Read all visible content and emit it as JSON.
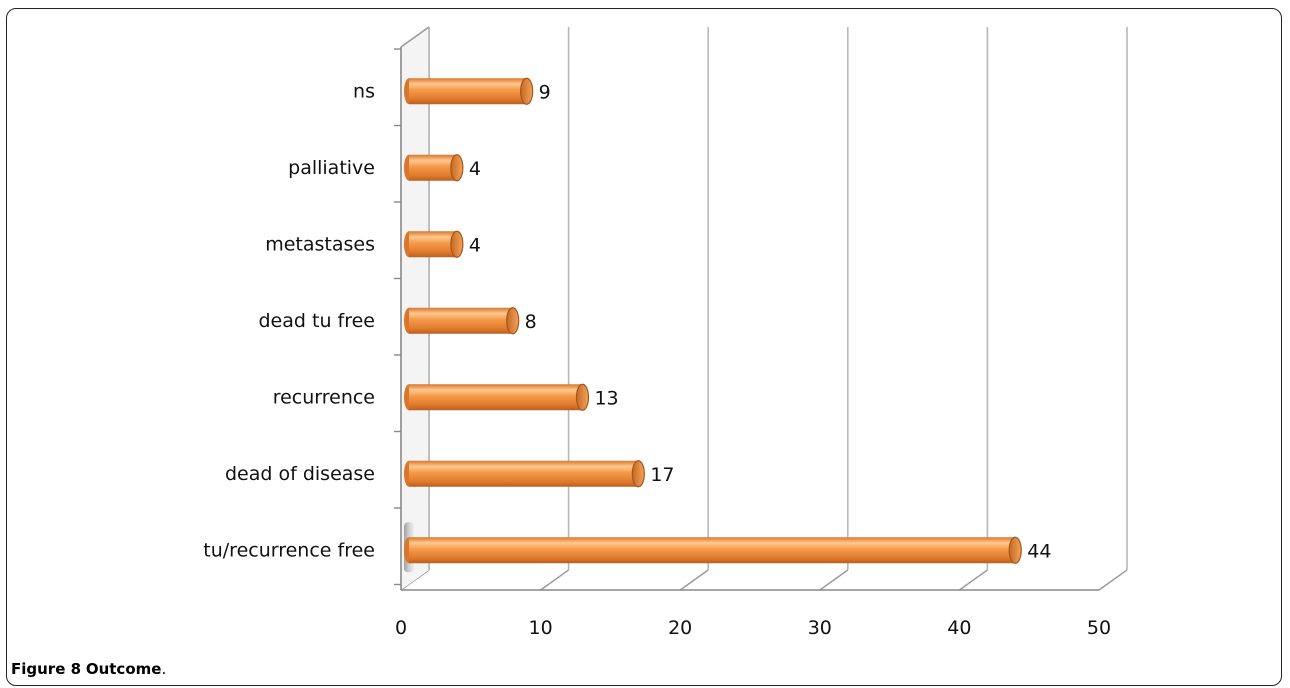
{
  "caption": {
    "figure_number": "Figure 8",
    "title": "Outcome",
    "trailing": "."
  },
  "chart_data": {
    "type": "bar",
    "orientation": "horizontal",
    "style": "3d-cylinder",
    "categories": [
      "ns",
      "palliative",
      "metastases",
      "dead tu free",
      "recurrence",
      "dead of disease",
      "tu/recurrence free"
    ],
    "values": [
      9,
      4,
      4,
      8,
      13,
      17,
      44
    ],
    "data_labels": [
      "9",
      "4",
      "4",
      "8",
      "13",
      "17",
      "44"
    ],
    "x_ticks": [
      "0",
      "10",
      "20",
      "30",
      "40",
      "50"
    ],
    "xlim": [
      0,
      50
    ],
    "title": "",
    "xlabel": "",
    "ylabel": "",
    "grid": true,
    "legend": "none",
    "bar_color": "#f0913e",
    "bar_highlight": "#ffc48a",
    "bar_shadow": "#c0621a"
  }
}
